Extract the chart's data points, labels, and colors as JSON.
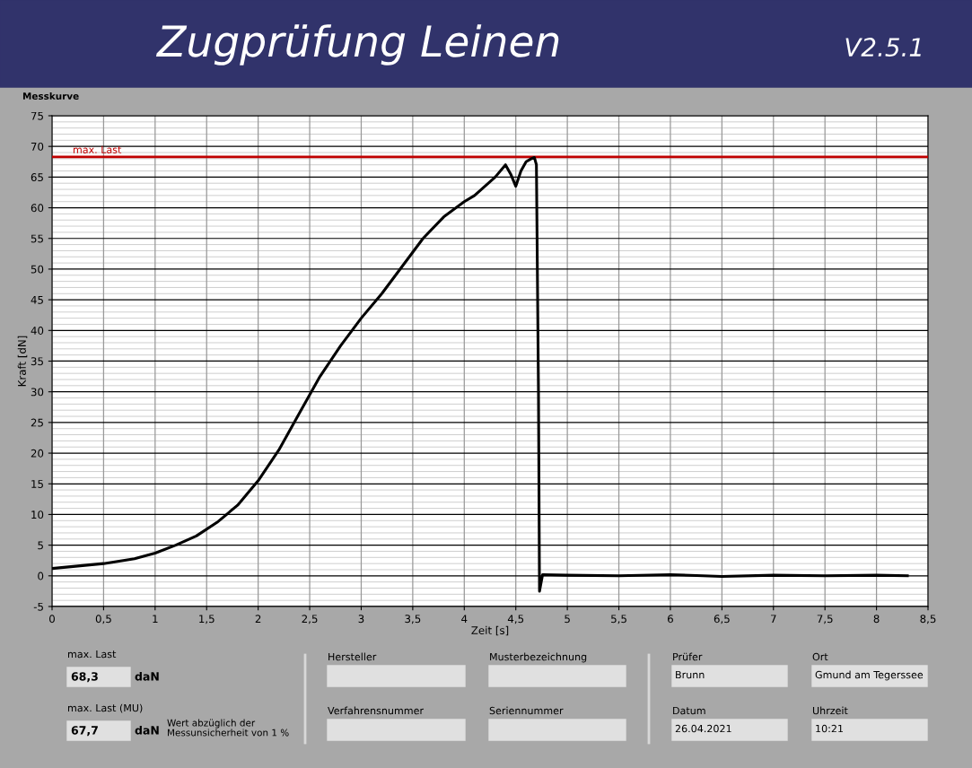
{
  "chart_data": {
    "type": "line",
    "title": "Zugprüfung Leinen",
    "subtitle": "V2.5.1",
    "xlabel": "Zeit [s]",
    "ylabel": "Kraft [dN]",
    "annotations": [
      "Messkurve",
      "max. Last",
      "68,3",
      "daN",
      "max. Last (MU)",
      "67,7",
      "daN",
      "Wert abzüglich der\nMessunsicherheit von 1 %",
      "Hersteller",
      "Musterbezeichnung",
      "Verfahrensnummer",
      "Seriennummer",
      "Prüfer",
      "Brunn",
      "Ort",
      "Gmund am Tegerssee",
      "Datum",
      "26.04.2021",
      "Uhrzeit",
      "10:21"
    ],
    "series": [
      {
        "color": "#000000",
        "x": [
          0,
          0.25,
          0.5,
          0.8,
          1.0,
          1.2,
          1.4,
          1.6,
          1.8,
          2.0,
          2.2,
          2.4,
          2.6,
          2.8,
          3.0,
          3.2,
          3.4,
          3.6,
          3.8,
          4.0,
          4.1,
          4.2,
          4.3,
          4.4,
          4.45,
          4.5,
          4.55,
          4.6,
          4.65,
          4.68,
          4.7,
          4.72,
          4.73,
          4.76,
          5.0,
          5.5,
          6.0,
          6.5,
          7.0,
          7.5,
          8.0,
          8.3
        ],
        "values": [
          1.2,
          1.6,
          2.0,
          2.8,
          3.7,
          5.0,
          6.5,
          8.7,
          11.5,
          15.5,
          20.5,
          26.5,
          32.5,
          37.5,
          42,
          46,
          50.5,
          55,
          58.5,
          61,
          62,
          63.5,
          65,
          67,
          65.5,
          63.5,
          66,
          67.5,
          68,
          68.2,
          67,
          30,
          -2.5,
          0.2,
          0.1,
          0,
          0.2,
          -0.1,
          0.1,
          0,
          0.1,
          0
        ]
      }
    ],
    "xlim": [
      0,
      8.5
    ],
    "ylim": [
      -5,
      75
    ],
    "xticks": [
      0,
      {
        "value": 0.5,
        "label": "0,5"
      },
      1,
      {
        "value": 1.5,
        "label": "1,5"
      },
      2,
      {
        "value": 2.5,
        "label": "2,5"
      },
      3,
      {
        "value": 3.5,
        "label": "3,5"
      },
      4,
      {
        "value": 4.5,
        "label": "4,5"
      },
      5,
      {
        "value": 5.5,
        "label": "5,5"
      },
      6,
      {
        "value": 6.5,
        "label": "6,5"
      },
      7,
      {
        "value": 7.5,
        "label": "7,5"
      },
      8,
      {
        "value": 8.5,
        "label": "8,5"
      }
    ],
    "yticks": [
      -5,
      0,
      5,
      10,
      15,
      20,
      25,
      30,
      35,
      40,
      45,
      50,
      55,
      60,
      65,
      70,
      75
    ],
    "ref_lines": [
      {
        "axis": "y",
        "value": 68.3,
        "label": "max. Last",
        "color": "#c00000"
      }
    ],
    "grid": true,
    "marker": "none",
    "line_style": "solid"
  }
}
